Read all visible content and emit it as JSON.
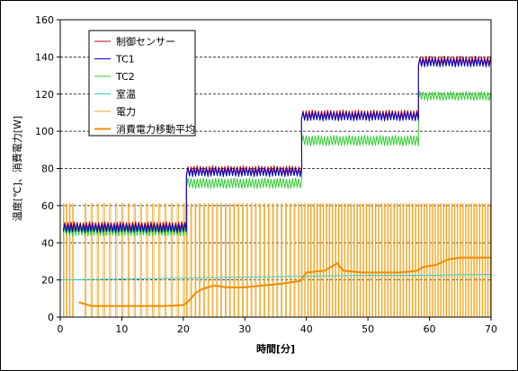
{
  "chart_data": {
    "type": "line",
    "xlabel": "時間[分]",
    "ylabel": "温度[℃]、消費電力[W]",
    "xlim": [
      0,
      70
    ],
    "ylim": [
      0,
      160
    ],
    "xticks": [
      0,
      10,
      20,
      30,
      40,
      50,
      60,
      70
    ],
    "yticks": [
      0,
      20,
      40,
      60,
      80,
      100,
      120,
      140,
      160
    ],
    "grid": "horizontal-dashed",
    "legend_position": "top-left",
    "colors": {
      "control": "#cc0000",
      "tc1": "#0000cc",
      "tc2": "#33cc33",
      "room": "#33cccc",
      "power": "#f5a623",
      "power_avg": "#f08c00"
    },
    "series": [
      {
        "key": "control",
        "name": "制御センサー",
        "segments": [
          {
            "x0": 0.5,
            "x1": 20.5,
            "mean": 49,
            "amp": 3
          },
          {
            "x0": 20.5,
            "x1": 39.2,
            "mean": 79,
            "amp": 3
          },
          {
            "x0": 39.2,
            "x1": 58.2,
            "mean": 109,
            "amp": 3
          },
          {
            "x0": 58.2,
            "x1": 70,
            "mean": 138,
            "amp": 3
          }
        ]
      },
      {
        "key": "tc1",
        "name": "TC1",
        "segments": [
          {
            "x0": 0.5,
            "x1": 20.5,
            "mean": 48,
            "amp": 3
          },
          {
            "x0": 20.5,
            "x1": 39.2,
            "mean": 78,
            "amp": 3
          },
          {
            "x0": 39.2,
            "x1": 58.2,
            "mean": 108,
            "amp": 3
          },
          {
            "x0": 58.2,
            "x1": 70,
            "mean": 137,
            "amp": 3
          }
        ]
      },
      {
        "key": "tc2",
        "name": "TC2",
        "segments": [
          {
            "x0": 0.5,
            "x1": 20.5,
            "mean": 46,
            "amp": 3
          },
          {
            "x0": 20.5,
            "x1": 39.2,
            "mean": 72,
            "amp": 3.5
          },
          {
            "x0": 39.2,
            "x1": 58.2,
            "mean": 95,
            "amp": 3.5
          },
          {
            "x0": 58.2,
            "x1": 70,
            "mean": 119,
            "amp": 3
          }
        ]
      },
      {
        "key": "room",
        "name": "室温",
        "points": [
          [
            0,
            20
          ],
          [
            10,
            20.5
          ],
          [
            20,
            21
          ],
          [
            30,
            21.5
          ],
          [
            40,
            22
          ],
          [
            50,
            22.5
          ],
          [
            60,
            22.5
          ],
          [
            70,
            23
          ]
        ]
      },
      {
        "key": "power",
        "name": "電力",
        "pulses": [
          {
            "x0": 0.5,
            "x1": 2.5,
            "period": 0.5
          },
          {
            "x0": 4,
            "x1": 20.3,
            "period": 1.0
          },
          {
            "x0": 20.5,
            "x1": 39,
            "period": 0.7
          },
          {
            "x0": 39.2,
            "x1": 58,
            "period": 0.5
          },
          {
            "x0": 58.2,
            "x1": 70,
            "period": 0.45
          }
        ],
        "high": 61,
        "low": 0
      },
      {
        "key": "power_avg",
        "name": "消費電力移動平均",
        "points": [
          [
            3,
            8
          ],
          [
            4,
            7
          ],
          [
            5,
            6
          ],
          [
            8,
            6
          ],
          [
            11,
            6
          ],
          [
            14,
            6
          ],
          [
            17,
            6
          ],
          [
            20,
            6.5
          ],
          [
            21,
            9
          ],
          [
            22,
            13
          ],
          [
            23,
            15
          ],
          [
            25,
            17
          ],
          [
            27,
            16
          ],
          [
            30,
            16
          ],
          [
            33,
            17
          ],
          [
            36,
            18
          ],
          [
            38,
            19
          ],
          [
            39,
            19.5
          ],
          [
            40,
            24
          ],
          [
            43,
            25
          ],
          [
            45,
            29
          ],
          [
            46,
            25
          ],
          [
            49,
            24
          ],
          [
            52,
            24
          ],
          [
            55,
            24
          ],
          [
            57,
            24.5
          ],
          [
            58,
            25
          ],
          [
            59,
            27
          ],
          [
            61,
            28
          ],
          [
            63,
            31
          ],
          [
            65,
            32
          ],
          [
            68,
            32
          ],
          [
            70,
            32
          ]
        ]
      }
    ]
  }
}
